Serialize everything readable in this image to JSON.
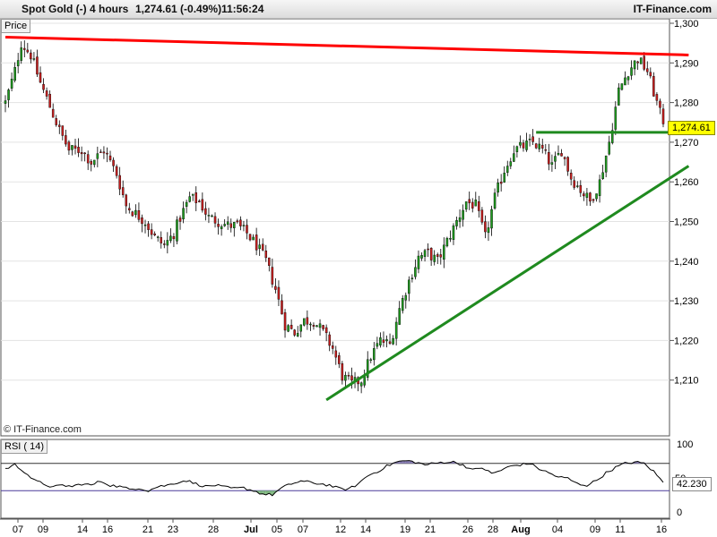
{
  "header": {
    "instrument": "Spot Gold (-)",
    "timeframe": "4 hours",
    "last_change": "1,274.61 (-0.49%)",
    "time": "11:56:24",
    "brand": "IT-Finance.com"
  },
  "price_panel": {
    "label": "Price",
    "last_price_flag": "1,274.61",
    "credit": "© IT-Finance.com"
  },
  "rsi_panel": {
    "label": "RSI ( 14)",
    "last_value_flag": "42.230"
  },
  "colors": {
    "up": "#1e9a1e",
    "down": "#c81e1e",
    "resistance": "#ff0000",
    "support": "#1f8a1f",
    "rsi_line": "#000000",
    "rsi_fill": "#8a7fb8"
  },
  "chart_data": [
    {
      "type": "candlestick",
      "title": "Spot Gold (-)",
      "ylim": [
        1200,
        1300
      ],
      "ytick_labels": [
        "1,210",
        "1,220",
        "1,230",
        "1,240",
        "1,250",
        "1,260",
        "1,270",
        "1,280",
        "1,290",
        "1,300"
      ],
      "yticks": [
        1210,
        1220,
        1230,
        1240,
        1250,
        1260,
        1270,
        1280,
        1290,
        1300
      ],
      "xtick_labels": [
        "07",
        "09",
        "14",
        "16",
        "21",
        "23",
        "28",
        "Jul",
        "05",
        "07",
        "12",
        "14",
        "19",
        "21",
        "26",
        "28",
        "Aug",
        "04",
        "09",
        "11",
        "16"
      ],
      "xtick_bold": [
        "Jul",
        "Aug"
      ],
      "close_path": [
        [
          0,
          1280
        ],
        [
          3,
          1288
        ],
        [
          5,
          1295
        ],
        [
          8,
          1292
        ],
        [
          11,
          1285
        ],
        [
          14,
          1279
        ],
        [
          17,
          1273
        ],
        [
          20,
          1268
        ],
        [
          24,
          1268
        ],
        [
          27,
          1265
        ],
        [
          31,
          1268
        ],
        [
          35,
          1262
        ],
        [
          38,
          1254
        ],
        [
          41,
          1252
        ],
        [
          44,
          1250
        ],
        [
          47,
          1246
        ],
        [
          50,
          1244
        ],
        [
          53,
          1247
        ],
        [
          55,
          1251
        ],
        [
          58,
          1256
        ],
        [
          61,
          1255
        ],
        [
          64,
          1251
        ],
        [
          67,
          1250
        ],
        [
          70,
          1249
        ],
        [
          73,
          1249
        ],
        [
          76,
          1247
        ],
        [
          79,
          1244
        ],
        [
          82,
          1240
        ],
        [
          85,
          1233
        ],
        [
          88,
          1224
        ],
        [
          91,
          1222
        ],
        [
          94,
          1225
        ],
        [
          97,
          1225
        ],
        [
          100,
          1222
        ],
        [
          103,
          1218
        ],
        [
          106,
          1211
        ],
        [
          109,
          1209
        ],
        [
          112,
          1210
        ],
        [
          115,
          1216
        ],
        [
          118,
          1220
        ],
        [
          121,
          1219
        ],
        [
          124,
          1228
        ],
        [
          127,
          1235
        ],
        [
          130,
          1241
        ],
        [
          133,
          1242
        ],
        [
          136,
          1240
        ],
        [
          139,
          1245
        ],
        [
          142,
          1250
        ],
        [
          145,
          1255
        ],
        [
          148,
          1254
        ],
        [
          151,
          1246
        ],
        [
          154,
          1256
        ],
        [
          157,
          1263
        ],
        [
          160,
          1268
        ],
        [
          163,
          1269
        ],
        [
          166,
          1270
        ],
        [
          169,
          1268
        ],
        [
          172,
          1264
        ],
        [
          175,
          1268
        ],
        [
          178,
          1261
        ],
        [
          181,
          1258
        ],
        [
          184,
          1255
        ],
        [
          187,
          1260
        ],
        [
          190,
          1270
        ],
        [
          193,
          1283
        ],
        [
          196,
          1288
        ],
        [
          199,
          1291
        ],
        [
          202,
          1288
        ],
        [
          205,
          1280
        ],
        [
          207,
          1274.61
        ]
      ],
      "n_bars": 208,
      "annotations": [
        {
          "type": "resistance",
          "color": "red",
          "from": [
            0,
            1296.5
          ],
          "to": [
            215,
            1292
          ]
        },
        {
          "type": "horizontal_support",
          "color": "green",
          "from": [
            167,
            1272.5
          ],
          "to": [
            215,
            1272.5
          ]
        },
        {
          "type": "rising_support",
          "color": "green",
          "from": [
            101,
            1205
          ],
          "to": [
            215,
            1264
          ]
        }
      ]
    },
    {
      "type": "line",
      "title": "RSI ( 14)",
      "ylim": [
        0,
        100
      ],
      "yticks": [
        0,
        50,
        100
      ],
      "ytick_labels": [
        "0",
        "50",
        "100"
      ],
      "levels": [
        70,
        30
      ],
      "path": [
        [
          0,
          62
        ],
        [
          3,
          68
        ],
        [
          6,
          58
        ],
        [
          9,
          45
        ],
        [
          12,
          40
        ],
        [
          15,
          35
        ],
        [
          18,
          38
        ],
        [
          21,
          36
        ],
        [
          24,
          40
        ],
        [
          27,
          38
        ],
        [
          30,
          44
        ],
        [
          33,
          38
        ],
        [
          36,
          36
        ],
        [
          39,
          32
        ],
        [
          42,
          34
        ],
        [
          45,
          30
        ],
        [
          48,
          36
        ],
        [
          51,
          38
        ],
        [
          54,
          42
        ],
        [
          57,
          45
        ],
        [
          60,
          40
        ],
        [
          63,
          36
        ],
        [
          66,
          38
        ],
        [
          69,
          35
        ],
        [
          72,
          33
        ],
        [
          75,
          34
        ],
        [
          78,
          30
        ],
        [
          81,
          25
        ],
        [
          84,
          24
        ],
        [
          87,
          34
        ],
        [
          90,
          40
        ],
        [
          93,
          44
        ],
        [
          96,
          42
        ],
        [
          99,
          40
        ],
        [
          102,
          38
        ],
        [
          105,
          33
        ],
        [
          108,
          32
        ],
        [
          111,
          40
        ],
        [
          114,
          52
        ],
        [
          117,
          58
        ],
        [
          120,
          66
        ],
        [
          123,
          72
        ],
        [
          126,
          74
        ],
        [
          129,
          72
        ],
        [
          132,
          68
        ],
        [
          135,
          70
        ],
        [
          138,
          72
        ],
        [
          141,
          72
        ],
        [
          144,
          68
        ],
        [
          147,
          60
        ],
        [
          150,
          64
        ],
        [
          153,
          55
        ],
        [
          156,
          60
        ],
        [
          159,
          66
        ],
        [
          162,
          68
        ],
        [
          165,
          70
        ],
        [
          168,
          62
        ],
        [
          171,
          56
        ],
        [
          174,
          50
        ],
        [
          177,
          48
        ],
        [
          180,
          40
        ],
        [
          183,
          38
        ],
        [
          186,
          45
        ],
        [
          189,
          56
        ],
        [
          192,
          64
        ],
        [
          195,
          70
        ],
        [
          198,
          72
        ],
        [
          201,
          70
        ],
        [
          204,
          58
        ],
        [
          207,
          42.23
        ]
      ]
    }
  ]
}
